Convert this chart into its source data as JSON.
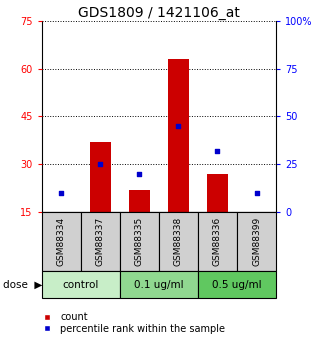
{
  "title": "GDS1809 / 1421106_at",
  "samples": [
    "GSM88334",
    "GSM88337",
    "GSM88335",
    "GSM88338",
    "GSM88336",
    "GSM88399"
  ],
  "count_values": [
    15.2,
    37.0,
    22.0,
    63.0,
    27.0,
    15.0
  ],
  "percentile_values": [
    10,
    25,
    20,
    45,
    32,
    10
  ],
  "left_ylim": [
    15,
    75
  ],
  "right_ylim": [
    0,
    100
  ],
  "left_yticks": [
    15,
    30,
    45,
    60,
    75
  ],
  "right_yticks": [
    0,
    25,
    50,
    75,
    100
  ],
  "right_yticklabels": [
    "0",
    "25",
    "50",
    "75",
    "100%"
  ],
  "dose_groups": [
    {
      "label": "control",
      "span": [
        0,
        2
      ],
      "color": "#c8eec8"
    },
    {
      "label": "0.1 ug/ml",
      "span": [
        2,
        4
      ],
      "color": "#90d890"
    },
    {
      "label": "0.5 ug/ml",
      "span": [
        4,
        6
      ],
      "color": "#60c860"
    }
  ],
  "sample_bg_color": "#d0d0d0",
  "bar_color": "#cc0000",
  "dot_color": "#0000cc",
  "bar_width": 0.55,
  "title_fontsize": 10,
  "tick_fontsize": 7,
  "sample_label_fontsize": 6.5,
  "dose_label_fontsize": 7.5,
  "legend_fontsize": 7
}
